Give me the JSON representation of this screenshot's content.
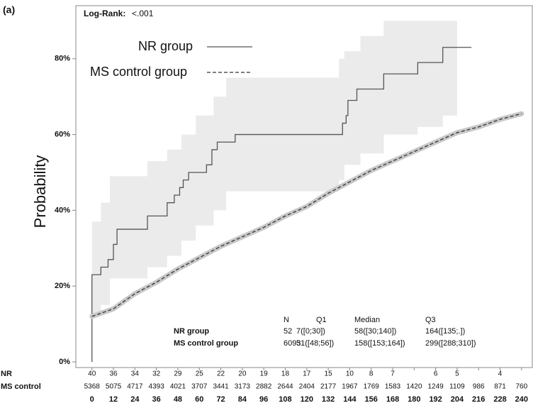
{
  "chart_data": {
    "type": "step",
    "panel_label": "(a)",
    "y_label": "Probability",
    "log_rank_label": "Log-Rank:",
    "log_rank_value": "<.001",
    "xlim": [
      -9,
      246
    ],
    "ylim": [
      -1.5,
      94
    ],
    "xticks": [
      0,
      12,
      24,
      36,
      48,
      60,
      72,
      84,
      96,
      108,
      120,
      132,
      144,
      156,
      168,
      180,
      192,
      204,
      216,
      228,
      240
    ],
    "yticks": [
      {
        "value": 0,
        "label": "0%"
      },
      {
        "value": 20,
        "label": "20%"
      },
      {
        "value": 40,
        "label": "40%"
      },
      {
        "value": 60,
        "label": "60%"
      },
      {
        "value": 80,
        "label": "80%"
      }
    ],
    "series": [
      {
        "name": "NR group",
        "color": "#555555",
        "line_style": "solid",
        "band_color": "#ebebeb",
        "x": [
          0,
          0,
          5,
          9,
          12,
          14,
          31,
          42,
          46,
          49,
          51,
          54,
          64,
          67,
          70,
          80,
          138,
          140,
          142,
          143,
          148,
          163,
          182,
          196,
          212
        ],
        "values": [
          0,
          23,
          25,
          27,
          31,
          35,
          38.5,
          42,
          44,
          46,
          48,
          50,
          52,
          56,
          58,
          60,
          60,
          63,
          65,
          69,
          72,
          76,
          79,
          83,
          83
        ],
        "band_x": [
          0,
          5,
          10,
          31,
          42,
          50,
          58,
          68,
          75,
          138,
          141,
          150,
          163,
          182,
          196,
          204
        ],
        "band_upper": [
          37,
          42,
          49,
          53,
          56,
          60,
          65,
          70,
          75,
          80,
          82,
          86,
          90,
          90,
          90,
          90
        ],
        "band_lower": [
          12,
          15,
          22,
          25,
          28,
          32,
          36,
          40,
          45,
          48,
          52,
          55,
          60,
          62,
          65,
          65
        ]
      },
      {
        "name": "MS control group",
        "color": "#333333",
        "line_style": "dashed",
        "band_color": "#c8c8c8",
        "x": [
          0,
          12,
          24,
          36,
          48,
          60,
          72,
          84,
          96,
          108,
          120,
          132,
          144,
          156,
          168,
          180,
          192,
          204,
          216,
          228,
          240
        ],
        "values": [
          12,
          14,
          18,
          21,
          24.5,
          27.5,
          30.5,
          33,
          35.5,
          38.5,
          41,
          44.5,
          47.5,
          50.5,
          53,
          55.5,
          58,
          60.5,
          62,
          64,
          65.5
        ]
      }
    ],
    "summary_table": {
      "header": [
        "N",
        "Q1",
        "Median",
        "Q3"
      ],
      "rows": [
        [
          "NR group",
          "52",
          "7([0;30])",
          "58([30;140])",
          "164([135;.])"
        ],
        [
          "MS control group",
          "6093",
          "51([48;56])",
          "158([153;164])",
          "299([288;310])"
        ]
      ]
    },
    "risk_table": [
      {
        "label": "NR",
        "values": [
          40,
          36,
          34,
          32,
          29,
          25,
          22,
          20,
          19,
          18,
          17,
          15,
          10,
          8,
          7,
          null,
          6,
          5,
          null,
          4,
          null
        ]
      },
      {
        "label": "MS control",
        "values": [
          5368,
          5075,
          4717,
          4393,
          4021,
          3707,
          3441,
          3173,
          2882,
          2644,
          2404,
          2177,
          1967,
          1769,
          1583,
          1420,
          1249,
          1109,
          986,
          871,
          760
        ]
      }
    ]
  }
}
